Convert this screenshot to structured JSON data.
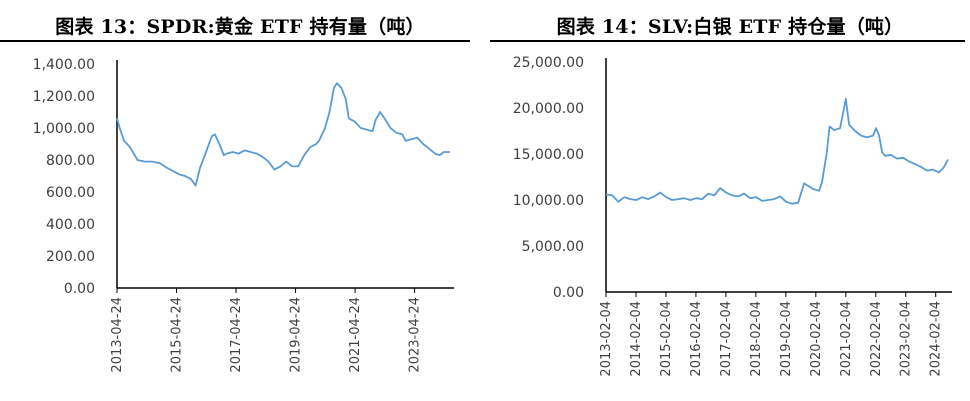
{
  "chart_data": [
    {
      "type": "line",
      "title": "图表 13：SPDR:黄金 ETF 持有量（吨）",
      "xlabel": "",
      "ylabel": "",
      "ylim": [
        0,
        1400
      ],
      "x_range": [
        2013.31,
        2024.5
      ],
      "y_ticks": [
        "1,400.00",
        "1,200.00",
        "1,000.00",
        "800.00",
        "600.00",
        "400.00",
        "200.00",
        "0.00"
      ],
      "y_tick_values": [
        1400,
        1200,
        1000,
        800,
        600,
        400,
        200,
        0
      ],
      "x_ticks": [
        "2013-04-24",
        "2015-04-24",
        "2017-04-24",
        "2019-04-24",
        "2021-04-24",
        "2023-04-24"
      ],
      "x_tick_values": [
        2013.31,
        2015.31,
        2017.31,
        2019.31,
        2021.31,
        2023.31
      ],
      "color": "#5b9bd5",
      "series": [
        {
          "name": "SPDR黄金ETF持有量",
          "x": [
            2013.31,
            2013.4,
            2013.55,
            2013.75,
            2014.0,
            2014.25,
            2014.5,
            2014.75,
            2015.0,
            2015.2,
            2015.4,
            2015.6,
            2015.8,
            2015.95,
            2016.1,
            2016.3,
            2016.5,
            2016.6,
            2016.75,
            2016.9,
            2017.0,
            2017.2,
            2017.4,
            2017.6,
            2017.8,
            2018.0,
            2018.2,
            2018.4,
            2018.6,
            2018.8,
            2019.0,
            2019.2,
            2019.4,
            2019.6,
            2019.8,
            2020.0,
            2020.1,
            2020.3,
            2020.45,
            2020.6,
            2020.7,
            2020.85,
            2021.0,
            2021.1,
            2021.3,
            2021.5,
            2021.7,
            2021.9,
            2022.0,
            2022.15,
            2022.3,
            2022.5,
            2022.7,
            2022.9,
            2023.0,
            2023.2,
            2023.4,
            2023.6,
            2023.8,
            2024.0,
            2024.15,
            2024.3,
            2024.5
          ],
          "values": [
            1060,
            1000,
            920,
            880,
            800,
            790,
            790,
            780,
            750,
            730,
            710,
            700,
            680,
            640,
            750,
            850,
            950,
            960,
            900,
            830,
            840,
            850,
            840,
            860,
            850,
            840,
            820,
            790,
            740,
            760,
            790,
            760,
            760,
            830,
            880,
            900,
            920,
            1000,
            1100,
            1250,
            1280,
            1250,
            1180,
            1060,
            1040,
            1000,
            990,
            980,
            1050,
            1100,
            1060,
            1000,
            970,
            960,
            920,
            930,
            940,
            900,
            870,
            840,
            830,
            850,
            850
          ]
        }
      ]
    },
    {
      "type": "line",
      "title": "图表 14：SLV:白银 ETF 持仓量（吨）",
      "xlabel": "",
      "ylabel": "",
      "ylim": [
        0,
        25000
      ],
      "x_range": [
        2013.09,
        2024.5
      ],
      "y_ticks": [
        "25,000.00",
        "20,000.00",
        "15,000.00",
        "10,000.00",
        "5,000.00",
        "0.00"
      ],
      "y_tick_values": [
        25000,
        20000,
        15000,
        10000,
        5000,
        0
      ],
      "x_ticks": [
        "2013-02-04",
        "2014-02-04",
        "2015-02-04",
        "2016-02-04",
        "2017-02-04",
        "2018-02-04",
        "2019-02-04",
        "2020-02-04",
        "2021-02-04",
        "2022-02-04",
        "2023-02-04",
        "2024-02-04"
      ],
      "x_tick_values": [
        2013.09,
        2014.09,
        2015.09,
        2016.09,
        2017.09,
        2018.09,
        2019.09,
        2020.09,
        2021.09,
        2022.09,
        2023.09,
        2024.09
      ],
      "color": "#5b9bd5",
      "series": [
        {
          "name": "SLV白银ETF持仓量",
          "x": [
            2013.09,
            2013.3,
            2013.5,
            2013.7,
            2013.9,
            2014.1,
            2014.3,
            2014.5,
            2014.7,
            2014.9,
            2015.1,
            2015.3,
            2015.5,
            2015.7,
            2015.9,
            2016.1,
            2016.3,
            2016.5,
            2016.7,
            2016.9,
            2017.1,
            2017.3,
            2017.5,
            2017.7,
            2017.9,
            2018.1,
            2018.3,
            2018.5,
            2018.7,
            2018.9,
            2019.1,
            2019.3,
            2019.5,
            2019.7,
            2019.8,
            2020.0,
            2020.2,
            2020.3,
            2020.45,
            2020.55,
            2020.7,
            2020.9,
            2021.09,
            2021.2,
            2021.4,
            2021.6,
            2021.8,
            2022.0,
            2022.1,
            2022.2,
            2022.3,
            2022.4,
            2022.6,
            2022.8,
            2023.0,
            2023.2,
            2023.4,
            2023.6,
            2023.8,
            2024.0,
            2024.2,
            2024.35,
            2024.5
          ],
          "values": [
            10600,
            10500,
            9800,
            10300,
            10100,
            10000,
            10300,
            10100,
            10400,
            10800,
            10300,
            10000,
            10100,
            10200,
            10000,
            10200,
            10100,
            10700,
            10500,
            11300,
            10800,
            10500,
            10400,
            10700,
            10200,
            10300,
            9900,
            10000,
            10100,
            10400,
            9800,
            9600,
            9700,
            11800,
            11600,
            11200,
            11000,
            12000,
            15000,
            18000,
            17600,
            17800,
            21000,
            18200,
            17500,
            17000,
            16800,
            17000,
            17800,
            17000,
            15200,
            14800,
            14900,
            14500,
            14600,
            14200,
            13900,
            13600,
            13200,
            13300,
            13000,
            13500,
            14400
          ]
        }
      ]
    }
  ]
}
